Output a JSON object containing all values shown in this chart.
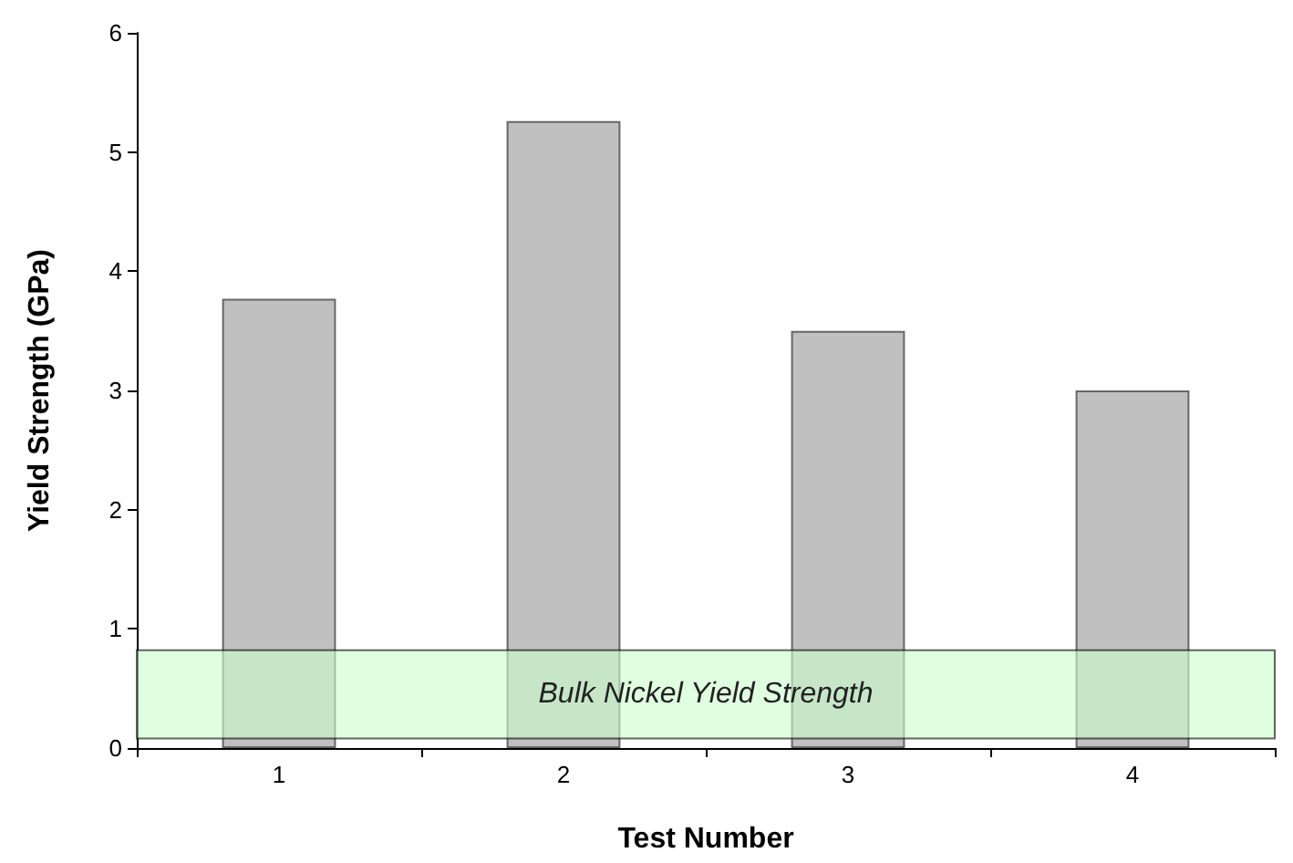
{
  "chart_data": {
    "type": "bar",
    "xlabel": "Test Number",
    "ylabel": "Yield Strength (GPa)",
    "categories": [
      "1",
      "2",
      "3",
      "4"
    ],
    "values": [
      3.77,
      5.26,
      3.5,
      3.0
    ],
    "color": "#c0c0c0",
    "ylim": [
      0,
      6
    ],
    "yticks": [
      0,
      1,
      2,
      3,
      4,
      5,
      6
    ],
    "grid": false,
    "bands": [
      {
        "axis": "y",
        "from": 0.08,
        "to": 0.82,
        "label": "Bulk Nickel Yield Strength",
        "color": "#ccffcc"
      }
    ]
  }
}
